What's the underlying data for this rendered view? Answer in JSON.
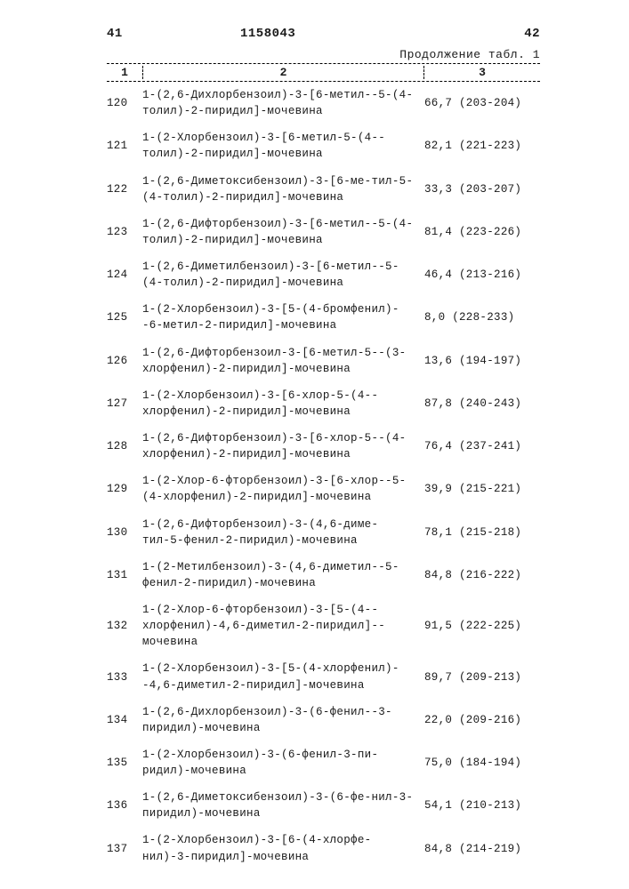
{
  "header": {
    "page_left": "41",
    "doc_number": "1158043",
    "page_right": "42",
    "continuation": "Продолжение табл. 1"
  },
  "col_headers": {
    "c1": "1",
    "c2": "2",
    "c3": "3"
  },
  "rows": [
    {
      "n": "120",
      "name": "1-(2,6-Дихлорбензоил)-3-[6-метил--5-(4-толил)-2-пиридил]-мочевина",
      "val": "66,7 (203-204)"
    },
    {
      "n": "121",
      "name": "1-(2-Хлорбензоил)-3-[6-метил-5-(4--толил)-2-пиридил]-мочевина",
      "val": "82,1 (221-223)"
    },
    {
      "n": "122",
      "name": "1-(2,6-Диметоксибензоил)-3-[6-ме-тил-5-(4-толил)-2-пиридил]-мочевина",
      "val": "33,3 (203-207)"
    },
    {
      "n": "123",
      "name": "1-(2,6-Дифторбензоил)-3-[6-метил--5-(4-толил)-2-пиридил]-мочевина",
      "val": "81,4 (223-226)"
    },
    {
      "n": "124",
      "name": "1-(2,6-Диметилбензоил)-3-[6-метил--5-(4-толил)-2-пиридил]-мочевина",
      "val": "46,4 (213-216)"
    },
    {
      "n": "125",
      "name": "1-(2-Хлорбензоил)-3-[5-(4-бромфенил)--6-метил-2-пиридил]-мочевина",
      "val": "8,0 (228-233)"
    },
    {
      "n": "126",
      "name": "1-(2,6-Дифторбензоил-3-[6-метил-5--(3-хлорфенил)-2-пиридил]-мочевина",
      "val": "13,6 (194-197)"
    },
    {
      "n": "127",
      "name": "1-(2-Хлорбензоил)-3-[6-хлор-5-(4--хлорфенил)-2-пиридил]-мочевина",
      "val": "87,8 (240-243)"
    },
    {
      "n": "128",
      "name": "1-(2,6-Дифторбензоил)-3-[6-хлор-5--(4-хлорфенил)-2-пиридил]-мочевина",
      "val": "76,4 (237-241)"
    },
    {
      "n": "129",
      "name": "1-(2-Хлор-6-фторбензоил)-3-[6-хлор--5-(4-хлорфенил)-2-пиридил]-мочевина",
      "val": "39,9 (215-221)"
    },
    {
      "n": "130",
      "name": "1-(2,6-Дифторбензоил)-3-(4,6-диме-тил-5-фенил-2-пиридил)-мочевина",
      "val": "78,1 (215-218)"
    },
    {
      "n": "131",
      "name": "1-(2-Метилбензоил)-3-(4,6-диметил--5-фенил-2-пиридил)-мочевина",
      "val": "84,8 (216-222)"
    },
    {
      "n": "132",
      "name": "1-(2-Хлор-6-фторбензоил)-3-[5-(4--хлорфенил)-4,6-диметил-2-пиридил]--мочевина",
      "val": "91,5 (222-225)"
    },
    {
      "n": "133",
      "name": "1-(2-Хлорбензоил)-3-[5-(4-хлорфенил)--4,6-диметил-2-пиридил]-мочевина",
      "val": "89,7 (209-213)"
    },
    {
      "n": "134",
      "name": "1-(2,6-Дихлорбензоил)-3-(6-фенил--3-пиридил)-мочевина",
      "val": "22,0 (209-216)"
    },
    {
      "n": "135",
      "name": "1-(2-Хлорбензоил)-3-(6-фенил-3-пи-ридил)-мочевина",
      "val": "75,0 (184-194)"
    },
    {
      "n": "136",
      "name": "1-(2,6-Диметоксибензоил)-3-(6-фе-нил-3-пиридил)-мочевина",
      "val": "54,1 (210-213)"
    },
    {
      "n": "137",
      "name": "1-(2-Хлорбензоил)-3-[6-(4-хлорфе-нил)-3-пиридил]-мочевина",
      "val": "84,8 (214-219)"
    }
  ]
}
